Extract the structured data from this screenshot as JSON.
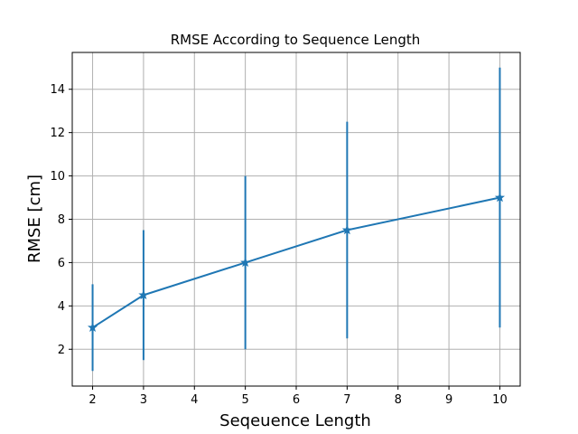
{
  "chart_data": {
    "type": "line",
    "title": "RMSE According to Sequence Length",
    "xlabel": "Seqeuence Length",
    "ylabel": "RMSE [cm]",
    "xlim": [
      1.6,
      10.4
    ],
    "ylim": [
      0.3,
      15.7
    ],
    "x_ticks": [
      2,
      3,
      4,
      5,
      6,
      7,
      8,
      9,
      10
    ],
    "x_tick_labels": [
      "2",
      "3",
      "4",
      "5",
      "6",
      "7",
      "8",
      "9",
      "10"
    ],
    "y_ticks": [
      2,
      4,
      6,
      8,
      10,
      12,
      14
    ],
    "y_tick_labels": [
      "2",
      "4",
      "6",
      "8",
      "10",
      "12",
      "14"
    ],
    "grid": true,
    "marker": "star",
    "series": [
      {
        "color": "#1f77b4",
        "x": [
          2,
          3,
          5,
          7,
          10
        ],
        "y": [
          3,
          4.5,
          6,
          7.5,
          9
        ],
        "err_low": [
          1,
          1.5,
          2,
          2.5,
          3
        ],
        "err_high": [
          5,
          7.5,
          10,
          12.5,
          15
        ]
      }
    ]
  },
  "colors": {
    "series": "#1f77b4",
    "grid": "#b0b0b0",
    "axis": "#000000",
    "background": "#ffffff"
  }
}
